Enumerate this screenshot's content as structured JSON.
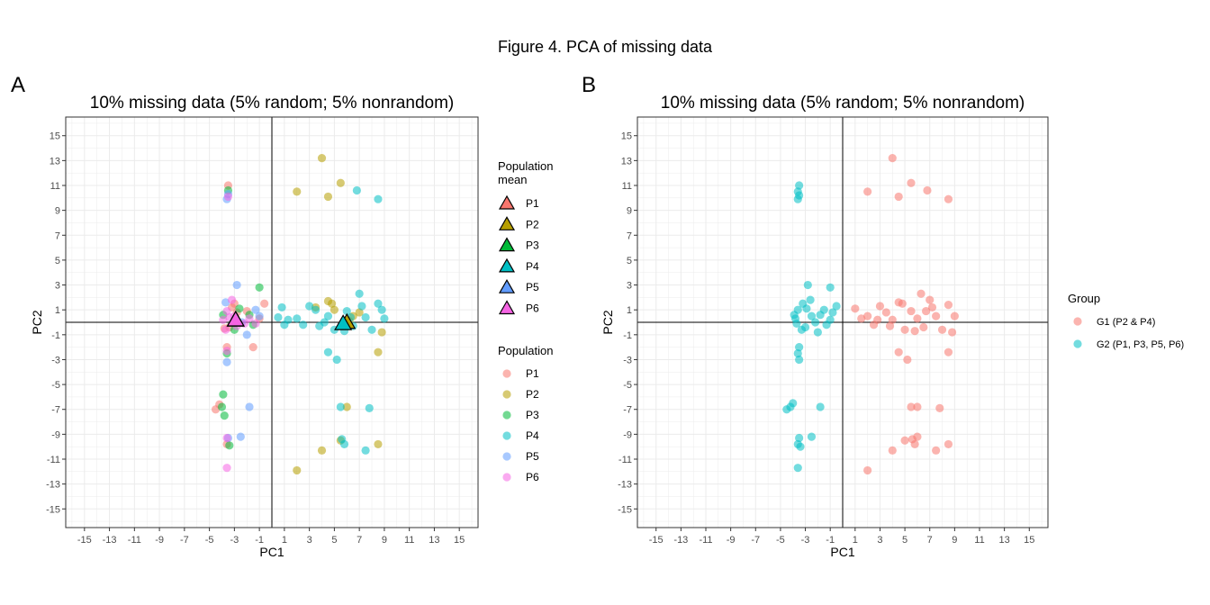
{
  "figure_title": "Figure 4. PCA of missing data",
  "colors": {
    "P1": "#F8766D",
    "P2": "#B79F00",
    "P3": "#00BA38",
    "P4": "#00BFC4",
    "P5": "#619CFF",
    "P6": "#F564E3",
    "G1": "#F8766D",
    "G2": "#00BFC4"
  },
  "chart_data": [
    {
      "type": "scatter",
      "panel_label": "A",
      "title": "10% missing data (5% random; 5% nonrandom)",
      "xlabel": "PC1",
      "ylabel": "PC2",
      "xlim": [
        -16.5,
        16.5
      ],
      "ylim": [
        -16.5,
        16.5
      ],
      "xticks": [
        -15,
        -13,
        -11,
        -9,
        -7,
        -5,
        -3,
        -1,
        1,
        3,
        5,
        7,
        9,
        11,
        13,
        15
      ],
      "yticks": [
        -15,
        -13,
        -11,
        -9,
        -7,
        -5,
        -3,
        -1,
        1,
        3,
        5,
        7,
        9,
        11,
        13,
        15
      ],
      "reference_lines": {
        "x": 0,
        "y": 0
      },
      "grid": true,
      "legend_position": "right",
      "legends": [
        {
          "title": "Population\nmean",
          "shape": "triangle",
          "entries": [
            "P1",
            "P2",
            "P3",
            "P4",
            "P5",
            "P6"
          ]
        },
        {
          "title": "Population",
          "shape": "circle",
          "entries": [
            "P1",
            "P2",
            "P3",
            "P4",
            "P5",
            "P6"
          ]
        }
      ],
      "means": [
        {
          "name": "P1",
          "x": -2.9,
          "y": 0.2
        },
        {
          "name": "P2",
          "x": 6.0,
          "y": 0.0
        },
        {
          "name": "P3",
          "x": -2.9,
          "y": 0.2
        },
        {
          "name": "P4",
          "x": 5.7,
          "y": -0.1
        },
        {
          "name": "P5",
          "x": -2.9,
          "y": 0.2
        },
        {
          "name": "P6",
          "x": -2.9,
          "y": 0.2
        }
      ],
      "series": [
        {
          "name": "P1",
          "points": [
            [
              -3.5,
              11.0
            ],
            [
              -3.6,
              -2.0
            ],
            [
              -4.2,
              -6.6
            ],
            [
              -4.5,
              -7.0
            ],
            [
              -3.6,
              -9.8
            ],
            [
              -3.2,
              1.2
            ],
            [
              -1.5,
              -2.0
            ],
            [
              -0.6,
              1.5
            ],
            [
              -2.8,
              0.8
            ],
            [
              -3.4,
              -0.4
            ],
            [
              -2.0,
              0.9
            ],
            [
              -1.0,
              0.3
            ],
            [
              -3.8,
              -0.5
            ],
            [
              -3.0,
              1.5
            ]
          ]
        },
        {
          "name": "P2",
          "points": [
            [
              4.0,
              13.2
            ],
            [
              5.5,
              11.2
            ],
            [
              2.0,
              10.5
            ],
            [
              4.5,
              10.1
            ],
            [
              8.5,
              -2.4
            ],
            [
              4.0,
              -10.3
            ],
            [
              5.5,
              -9.5
            ],
            [
              8.5,
              -9.8
            ],
            [
              6.0,
              -6.8
            ],
            [
              2.0,
              -11.9
            ],
            [
              4.5,
              1.7
            ],
            [
              5.0,
              1.0
            ],
            [
              6.5,
              0.5
            ],
            [
              8.8,
              -0.8
            ],
            [
              4.8,
              1.5
            ],
            [
              6.2,
              0.1
            ],
            [
              3.5,
              1.2
            ],
            [
              7.0,
              0.8
            ]
          ]
        },
        {
          "name": "P3",
          "points": [
            [
              -3.5,
              10.6
            ],
            [
              -3.6,
              -2.5
            ],
            [
              -3.9,
              -5.8
            ],
            [
              -4.0,
              -6.8
            ],
            [
              -3.8,
              -7.5
            ],
            [
              -3.4,
              -9.9
            ],
            [
              -1.0,
              2.8
            ],
            [
              -2.6,
              1.1
            ],
            [
              -1.5,
              -0.2
            ],
            [
              -3.9,
              0.6
            ],
            [
              -3.0,
              -0.6
            ],
            [
              -1.8,
              0.6
            ]
          ]
        },
        {
          "name": "P4",
          "points": [
            [
              6.8,
              10.6
            ],
            [
              8.5,
              9.9
            ],
            [
              5.5,
              -6.8
            ],
            [
              7.8,
              -6.9
            ],
            [
              5.6,
              -9.4
            ],
            [
              5.8,
              -9.8
            ],
            [
              7.5,
              -10.3
            ],
            [
              4.5,
              -2.4
            ],
            [
              5.2,
              -3.0
            ],
            [
              0.8,
              1.2
            ],
            [
              1.3,
              0.2
            ],
            [
              2.5,
              -0.2
            ],
            [
              3.5,
              1.0
            ],
            [
              4.5,
              0.5
            ],
            [
              5.0,
              -0.6
            ],
            [
              6.0,
              0.9
            ],
            [
              6.5,
              -0.3
            ],
            [
              7.0,
              2.3
            ],
            [
              7.5,
              0.4
            ],
            [
              8.0,
              -0.6
            ],
            [
              8.5,
              1.5
            ],
            [
              9.0,
              0.3
            ],
            [
              6.3,
              0.4
            ],
            [
              3.0,
              1.3
            ],
            [
              2.0,
              0.3
            ],
            [
              0.5,
              0.4
            ],
            [
              1.0,
              -0.2
            ],
            [
              7.2,
              1.3
            ],
            [
              5.8,
              -0.7
            ],
            [
              4.2,
              0.0
            ],
            [
              8.8,
              1.0
            ],
            [
              3.8,
              -0.3
            ]
          ]
        },
        {
          "name": "P5",
          "points": [
            [
              -3.5,
              10.3
            ],
            [
              -3.6,
              9.9
            ],
            [
              -2.8,
              3.0
            ],
            [
              -2.0,
              -1.0
            ],
            [
              -3.6,
              -3.2
            ],
            [
              -1.8,
              -6.8
            ],
            [
              -2.5,
              -9.2
            ],
            [
              -3.5,
              -9.3
            ],
            [
              -1.0,
              0.5
            ],
            [
              -2.4,
              0.0
            ],
            [
              -1.3,
              1.0
            ],
            [
              -3.7,
              1.6
            ]
          ]
        },
        {
          "name": "P6",
          "points": [
            [
              -3.5,
              10.1
            ],
            [
              -3.6,
              -2.3
            ],
            [
              -3.6,
              -9.3
            ],
            [
              -3.6,
              -11.7
            ],
            [
              -3.6,
              0.9
            ],
            [
              -2.8,
              -0.3
            ],
            [
              -3.4,
              0.4
            ],
            [
              -1.3,
              -0.1
            ],
            [
              -1.8,
              0.3
            ],
            [
              -3.9,
              0.2
            ],
            [
              -3.2,
              1.8
            ],
            [
              -3.0,
              0.5
            ],
            [
              -2.2,
              -0.1
            ],
            [
              -3.7,
              -0.6
            ]
          ]
        }
      ]
    },
    {
      "type": "scatter",
      "panel_label": "B",
      "title": "10% missing data (5% random; 5% nonrandom)",
      "xlabel": "PC1",
      "ylabel": "PC2",
      "xlim": [
        -16.5,
        16.5
      ],
      "ylim": [
        -16.5,
        16.5
      ],
      "xticks": [
        -15,
        -13,
        -11,
        -9,
        -7,
        -5,
        -3,
        -1,
        1,
        3,
        5,
        7,
        9,
        11,
        13,
        15
      ],
      "yticks": [
        -15,
        -13,
        -11,
        -9,
        -7,
        -5,
        -3,
        -1,
        1,
        3,
        5,
        7,
        9,
        11,
        13,
        15
      ],
      "reference_lines": {
        "x": 0,
        "y": 0
      },
      "grid": true,
      "legend_position": "right",
      "legends": [
        {
          "title": "Group",
          "shape": "circle",
          "entries": [
            "G1 (P2 & P4)",
            "G2 (P1, P3, P5, P6)"
          ],
          "keys": [
            "G1",
            "G2"
          ]
        }
      ],
      "series": [
        {
          "name": "G1 (P2 & P4)",
          "key": "G1",
          "points": [
            [
              4.0,
              13.2
            ],
            [
              5.5,
              11.2
            ],
            [
              2.0,
              10.5
            ],
            [
              4.5,
              10.1
            ],
            [
              6.8,
              10.6
            ],
            [
              8.5,
              9.9
            ],
            [
              5.5,
              -6.8
            ],
            [
              6.0,
              -6.8
            ],
            [
              7.8,
              -6.9
            ],
            [
              5.6,
              -9.4
            ],
            [
              6.0,
              -9.2
            ],
            [
              5.0,
              -9.5
            ],
            [
              4.0,
              -10.3
            ],
            [
              5.8,
              -9.8
            ],
            [
              7.5,
              -10.3
            ],
            [
              8.5,
              -9.8
            ],
            [
              2.0,
              -11.9
            ],
            [
              4.5,
              -2.4
            ],
            [
              5.2,
              -3.0
            ],
            [
              8.5,
              -2.4
            ],
            [
              1.0,
              1.1
            ],
            [
              1.5,
              0.3
            ],
            [
              2.5,
              -0.2
            ],
            [
              3.0,
              1.3
            ],
            [
              3.5,
              0.8
            ],
            [
              4.0,
              0.2
            ],
            [
              4.5,
              1.6
            ],
            [
              5.0,
              -0.6
            ],
            [
              5.5,
              0.9
            ],
            [
              6.0,
              0.3
            ],
            [
              6.5,
              -0.4
            ],
            [
              7.0,
              1.8
            ],
            [
              7.5,
              0.5
            ],
            [
              8.0,
              -0.6
            ],
            [
              8.5,
              1.4
            ],
            [
              9.0,
              0.5
            ],
            [
              6.3,
              2.3
            ],
            [
              2.0,
              0.5
            ],
            [
              4.8,
              1.5
            ],
            [
              5.8,
              -0.7
            ],
            [
              7.2,
              1.2
            ],
            [
              3.8,
              -0.3
            ],
            [
              8.8,
              -0.8
            ],
            [
              6.7,
              0.9
            ],
            [
              2.8,
              0.2
            ]
          ]
        },
        {
          "name": "G2 (P1, P3, P5, P6)",
          "key": "G2",
          "points": [
            [
              -3.5,
              11.0
            ],
            [
              -3.6,
              10.5
            ],
            [
              -3.5,
              10.2
            ],
            [
              -3.6,
              9.9
            ],
            [
              -3.5,
              -2.0
            ],
            [
              -3.6,
              -2.5
            ],
            [
              -3.5,
              -3.0
            ],
            [
              -4.0,
              -6.5
            ],
            [
              -4.2,
              -6.8
            ],
            [
              -4.5,
              -7.0
            ],
            [
              -1.8,
              -6.8
            ],
            [
              -3.5,
              -9.3
            ],
            [
              -3.6,
              -9.8
            ],
            [
              -3.4,
              -10.0
            ],
            [
              -2.5,
              -9.2
            ],
            [
              -3.6,
              -11.7
            ],
            [
              -2.8,
              3.0
            ],
            [
              -1.0,
              2.8
            ],
            [
              -3.2,
              1.5
            ],
            [
              -2.5,
              0.5
            ],
            [
              -1.5,
              1.0
            ],
            [
              -3.8,
              0.3
            ],
            [
              -2.0,
              -0.8
            ],
            [
              -3.0,
              -0.4
            ],
            [
              -1.0,
              0.2
            ],
            [
              -0.5,
              1.3
            ],
            [
              -3.6,
              1.0
            ],
            [
              -2.2,
              0.0
            ],
            [
              -1.8,
              0.6
            ],
            [
              -3.3,
              -0.6
            ],
            [
              -1.3,
              -0.2
            ],
            [
              -3.9,
              0.6
            ],
            [
              -2.9,
              1.1
            ],
            [
              -3.7,
              -0.1
            ],
            [
              -0.8,
              0.8
            ],
            [
              -2.6,
              1.8
            ]
          ]
        }
      ]
    }
  ]
}
